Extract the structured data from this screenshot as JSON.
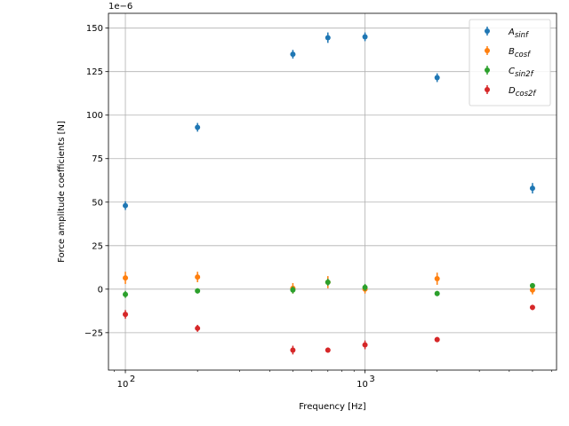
{
  "chart_data": {
    "type": "scatter",
    "x_scale": "log",
    "xlabel": "Frequency [Hz]",
    "ylabel": "Force amplitude coefficients [N]",
    "y_offset_label": "1e−6",
    "xlim": [
      85,
      6300
    ],
    "ylim": [
      -46.5,
      158.5
    ],
    "y_ticks": [
      -25,
      0,
      25,
      50,
      75,
      100,
      125,
      150
    ],
    "x_major_ticks": [
      100,
      1000
    ],
    "x_tick_labels": [
      "10",
      "10"
    ],
    "x_tick_exponents": [
      "2",
      "3"
    ],
    "grid": true,
    "legend_position": "upper-right",
    "x": [
      100,
      200,
      500,
      700,
      1000,
      2000,
      5000
    ],
    "series": [
      {
        "name": "A",
        "subscript": "sinf",
        "color": "#1f77b4",
        "values": [
          48,
          93,
          135,
          144.5,
          145,
          121.5,
          58
        ],
        "errors": [
          2.5,
          2.5,
          2.5,
          3,
          2.5,
          2.5,
          3
        ]
      },
      {
        "name": "B",
        "subscript": "cosf",
        "color": "#ff7f0e",
        "values": [
          6.5,
          7,
          0.5,
          4,
          0,
          6,
          -0.5
        ],
        "errors": [
          3.5,
          3,
          3,
          3.5,
          2.5,
          3.5,
          2.5
        ]
      },
      {
        "name": "C",
        "subscript": "sin2f",
        "color": "#2ca02c",
        "values": [
          -3,
          -1,
          -0.5,
          4,
          1,
          -2.5,
          2
        ],
        "errors": [
          2,
          1.5,
          2,
          2,
          2,
          1.5,
          1.5
        ]
      },
      {
        "name": "D",
        "subscript": "cos2f",
        "color": "#d62728",
        "values": [
          -14.5,
          -22.5,
          -35,
          -35,
          -32,
          -29,
          -10.5
        ],
        "errors": [
          2.5,
          2,
          2.5,
          1.5,
          2.5,
          1.5,
          1.5
        ]
      }
    ]
  }
}
